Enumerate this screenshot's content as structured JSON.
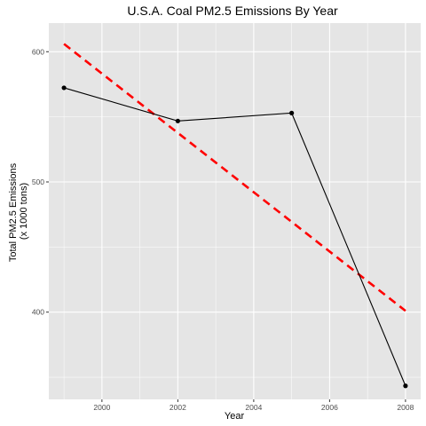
{
  "chart_data": {
    "type": "line",
    "title": "U.S.A. Coal PM2.5 Emissions By Year",
    "xlabel": "Year",
    "ylabel": [
      "Total PM2.5 Emissions",
      "(x 1000 tons)"
    ],
    "x": [
      1999,
      2002,
      2005,
      2008
    ],
    "series": [
      {
        "name": "",
        "values": [
          572.3,
          546.8,
          552.9,
          343.4
        ],
        "color": "#000000",
        "style": "solid-with-points"
      }
    ],
    "trend_line": {
      "from": [
        1999,
        606
      ],
      "to": [
        2008,
        401
      ],
      "color": "#ff0000",
      "style": "dashed"
    },
    "xlim": [
      1998.6,
      2008.4
    ],
    "ylim": [
      333,
      622
    ],
    "x_ticks": [
      2000,
      2002,
      2004,
      2006,
      2008
    ],
    "y_ticks": [
      400,
      500,
      600
    ],
    "x_tick_labels": [
      "2000",
      "2002",
      "2004",
      "2006",
      "2008"
    ],
    "y_tick_labels": [
      "400",
      "500",
      "600"
    ],
    "grid": true,
    "panel_background": "#e5e5e5",
    "grid_color": "#ffffff"
  }
}
